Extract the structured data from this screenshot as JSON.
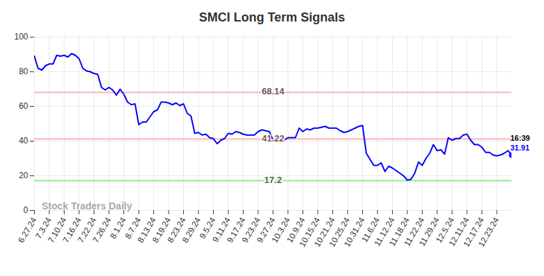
{
  "chart_data": {
    "type": "line",
    "title": "SMCI Long Term Signals",
    "categories": [
      "6.27.24",
      null,
      null,
      null,
      "7.3.24",
      null,
      null,
      null,
      "7.10.24",
      null,
      null,
      null,
      "7.16.24",
      null,
      null,
      null,
      "7.22.24",
      null,
      null,
      null,
      "7.26.24",
      null,
      null,
      null,
      "8.1.24",
      null,
      null,
      null,
      "8.7.24",
      null,
      null,
      null,
      "8.13.24",
      null,
      null,
      null,
      "8.19.24",
      null,
      null,
      null,
      "8.23.24",
      null,
      null,
      null,
      "8.29.24",
      null,
      null,
      null,
      "9.5.24",
      null,
      null,
      null,
      "9.11.24",
      null,
      null,
      null,
      "9.17.24",
      null,
      null,
      null,
      "9.23.24",
      null,
      null,
      null,
      "9.27.24",
      null,
      null,
      null,
      "10.3.24",
      null,
      null,
      null,
      "10.9.24",
      null,
      null,
      null,
      "10.15.24",
      null,
      null,
      null,
      "10.21.24",
      null,
      null,
      null,
      "10.25.24",
      null,
      null,
      null,
      "10.31.24",
      null,
      null,
      null,
      "11.6.24",
      null,
      null,
      null,
      "11.12.24",
      null,
      null,
      null,
      "11.18.24",
      null,
      null,
      null,
      "11.22.24",
      null,
      null,
      null,
      "11.29.24",
      null,
      null,
      null,
      "12.5.24",
      null,
      null,
      null,
      "12.11.24",
      null,
      null,
      null,
      "12.17.24",
      null,
      null,
      null,
      "12.23.24",
      null,
      null,
      null,
      null
    ],
    "values": [
      89,
      82,
      81,
      83.5,
      84.5,
      84.5,
      89.5,
      89,
      89.5,
      88.5,
      90.5,
      89.5,
      87.5,
      82,
      80.5,
      80,
      79,
      78.5,
      71,
      69.5,
      71,
      69.5,
      66.5,
      70,
      67,
      62.5,
      61,
      61.5,
      49.5,
      51,
      51,
      54,
      57,
      58,
      62.5,
      62.5,
      62,
      61,
      62,
      60.5,
      61.5,
      56,
      54.5,
      44.5,
      45,
      43.5,
      44,
      42,
      41.5,
      38.5,
      40.5,
      41.5,
      44.5,
      44,
      45.5,
      45,
      44,
      43.5,
      43.5,
      43.5,
      45.5,
      46.5,
      46,
      45.5,
      40.5,
      41.5,
      41.5,
      40.5,
      42,
      42,
      42,
      47.5,
      45.5,
      47,
      46.5,
      47.5,
      47.5,
      48,
      48.5,
      47.5,
      47.5,
      47.5,
      46,
      45,
      45.5,
      46.5,
      47.5,
      48.5,
      49,
      33,
      29.5,
      26,
      26,
      27.5,
      22.5,
      25.5,
      24.5,
      23,
      21.5,
      20,
      17.5,
      18,
      21.5,
      28,
      26,
      30,
      33,
      38,
      34.5,
      35,
      32.5,
      42,
      40.5,
      41.5,
      41.5,
      43.5,
      44,
      40.5,
      38,
      38,
      36.5,
      33.5,
      33.5,
      32,
      31.5,
      32,
      33,
      34.5,
      31.91
    ],
    "color": "#0000ff",
    "ylim": [
      0,
      100
    ],
    "yticks": [
      0,
      20,
      40,
      60,
      80,
      100
    ],
    "grid": true,
    "reference_lines": [
      {
        "value": 68.14,
        "color": "#ffb3b3"
      },
      {
        "value": 41.22,
        "color": "#ffb3b3"
      },
      {
        "value": 17.2,
        "color": "#90ee90"
      }
    ],
    "last_point_time": "16:39",
    "watermark": "Stock Traders Daily"
  }
}
